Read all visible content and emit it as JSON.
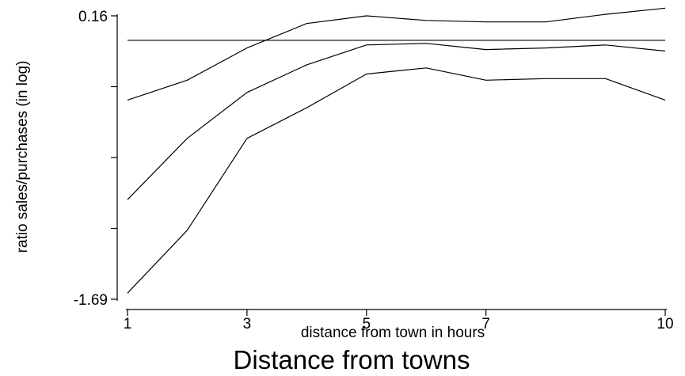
{
  "chart_data": {
    "type": "line",
    "title": "Distance from towns",
    "xlabel": "distance from town in hours",
    "ylabel": "ratio sales/purchases (in log)",
    "xlim": [
      1,
      10
    ],
    "ylim": [
      -1.69,
      0.16
    ],
    "x_ticks": [
      1,
      3,
      5,
      7,
      10
    ],
    "y_tick_values": [
      -1.69,
      -1.2275,
      -0.765,
      -0.3025,
      0.16
    ],
    "y_tick_labels": [
      "-1.69",
      "",
      "",
      "",
      "0.16"
    ],
    "reference_line_y": 0.0,
    "grid": false,
    "legend": "none",
    "line_color": "#000000",
    "x": [
      1,
      2,
      3,
      4,
      5,
      6,
      7,
      8,
      9,
      10
    ],
    "series": [
      {
        "values": [
          -0.39,
          -0.26,
          -0.05,
          0.11,
          0.16,
          0.13,
          0.12,
          0.12,
          0.17,
          0.21
        ]
      },
      {
        "values": [
          -1.04,
          -0.64,
          -0.34,
          -0.16,
          -0.03,
          -0.02,
          -0.06,
          -0.05,
          -0.03,
          -0.07
        ]
      },
      {
        "values": [
          -1.65,
          -1.24,
          -0.64,
          -0.44,
          -0.22,
          -0.18,
          -0.26,
          -0.25,
          -0.25,
          -0.39
        ]
      }
    ]
  }
}
